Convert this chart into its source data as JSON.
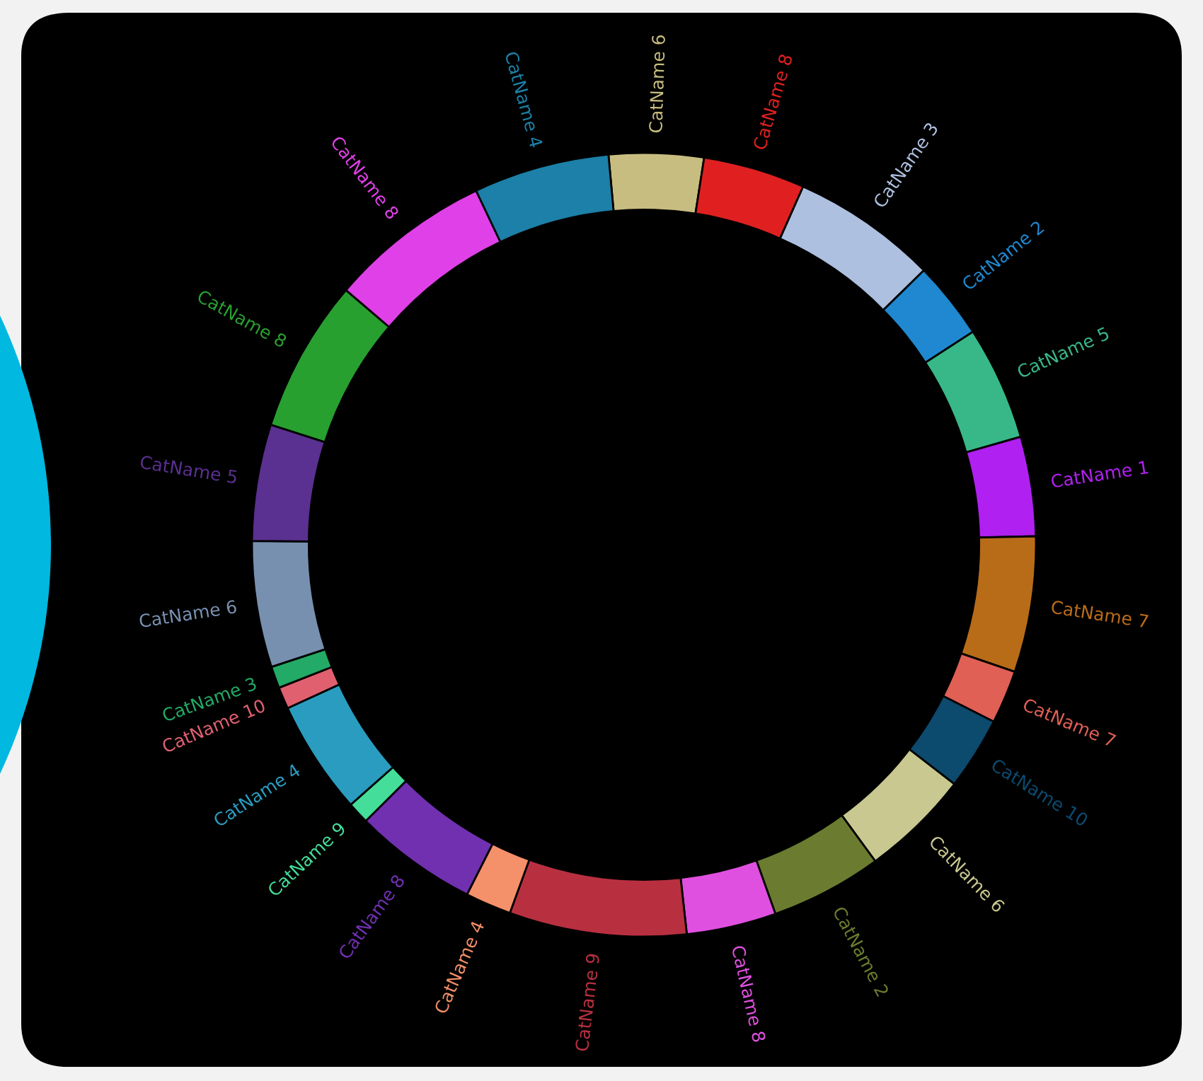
{
  "chart_data": {
    "type": "donut",
    "categories": [
      "CatName 6",
      "CatName 8",
      "CatName 3",
      "CatName 2",
      "CatName 5",
      "CatName 1",
      "CatName 7",
      "CatName 7",
      "CatName 10",
      "CatName 6",
      "CatName 2",
      "CatName 8",
      "CatName 9",
      "CatName 4",
      "CatName 8",
      "CatName 9",
      "CatName 4",
      "CatName 10",
      "CatName 3",
      "CatName 6",
      "CatName 5",
      "CatName 8",
      "CatName 8",
      "CatName 4"
    ],
    "values": [
      3.9,
      4.2,
      6.0,
      3.2,
      4.7,
      4.1,
      5.6,
      2.2,
      3.0,
      4.5,
      4.6,
      3.7,
      7.3,
      1.9,
      5.1,
      0.9,
      4.7,
      0.9,
      0.9,
      5.2,
      4.8,
      6.3,
      6.7,
      5.6
    ],
    "colors": [
      "#c8bd80",
      "#e02020",
      "#aec0e0",
      "#1f88d0",
      "#38b888",
      "#b020f0",
      "#b86c18",
      "#e06055",
      "#0c4a6e",
      "#c8c890",
      "#6b7c30",
      "#e050e0",
      "#b83040",
      "#f4906a",
      "#7030b0",
      "#44dd99",
      "#2a9cc0",
      "#e06070",
      "#22aa66",
      "#7890b0",
      "#5a3090",
      "#28a030",
      "#e040e8",
      "#1c80a8"
    ],
    "legend": false
  }
}
